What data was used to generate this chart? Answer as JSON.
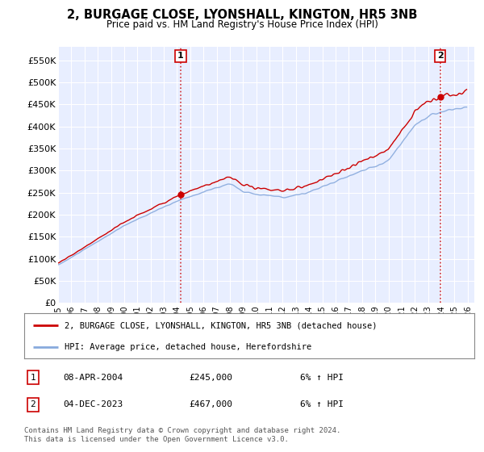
{
  "title": "2, BURGAGE CLOSE, LYONSHALL, KINGTON, HR5 3NB",
  "subtitle": "Price paid vs. HM Land Registry's House Price Index (HPI)",
  "xlim_start": 1995.0,
  "xlim_end": 2026.5,
  "ylim": [
    0,
    580000
  ],
  "yticks": [
    0,
    50000,
    100000,
    150000,
    200000,
    250000,
    300000,
    350000,
    400000,
    450000,
    500000,
    550000
  ],
  "ytick_labels": [
    "£0",
    "£50K",
    "£100K",
    "£150K",
    "£200K",
    "£250K",
    "£300K",
    "£350K",
    "£400K",
    "£450K",
    "£500K",
    "£550K"
  ],
  "legend_label_red": "2, BURGAGE CLOSE, LYONSHALL, KINGTON, HR5 3NB (detached house)",
  "legend_label_blue": "HPI: Average price, detached house, Herefordshire",
  "sale1_date": "08-APR-2004",
  "sale1_price": "£245,000",
  "sale1_hpi": "6% ↑ HPI",
  "sale1_x": 2004.27,
  "sale1_y": 245000,
  "sale2_date": "04-DEC-2023",
  "sale2_price": "£467,000",
  "sale2_hpi": "6% ↑ HPI",
  "sale2_x": 2023.92,
  "sale2_y": 467000,
  "footer": "Contains HM Land Registry data © Crown copyright and database right 2024.\nThis data is licensed under the Open Government Licence v3.0.",
  "red_color": "#cc0000",
  "blue_color": "#88aadd",
  "background_color": "#ffffff",
  "plot_bg_color": "#e8eeff",
  "grid_color": "#ffffff",
  "xticks": [
    1995,
    1996,
    1997,
    1998,
    1999,
    2000,
    2001,
    2002,
    2003,
    2004,
    2005,
    2006,
    2007,
    2008,
    2009,
    2010,
    2011,
    2012,
    2013,
    2014,
    2015,
    2016,
    2017,
    2018,
    2019,
    2020,
    2021,
    2022,
    2023,
    2024,
    2025,
    2026
  ]
}
